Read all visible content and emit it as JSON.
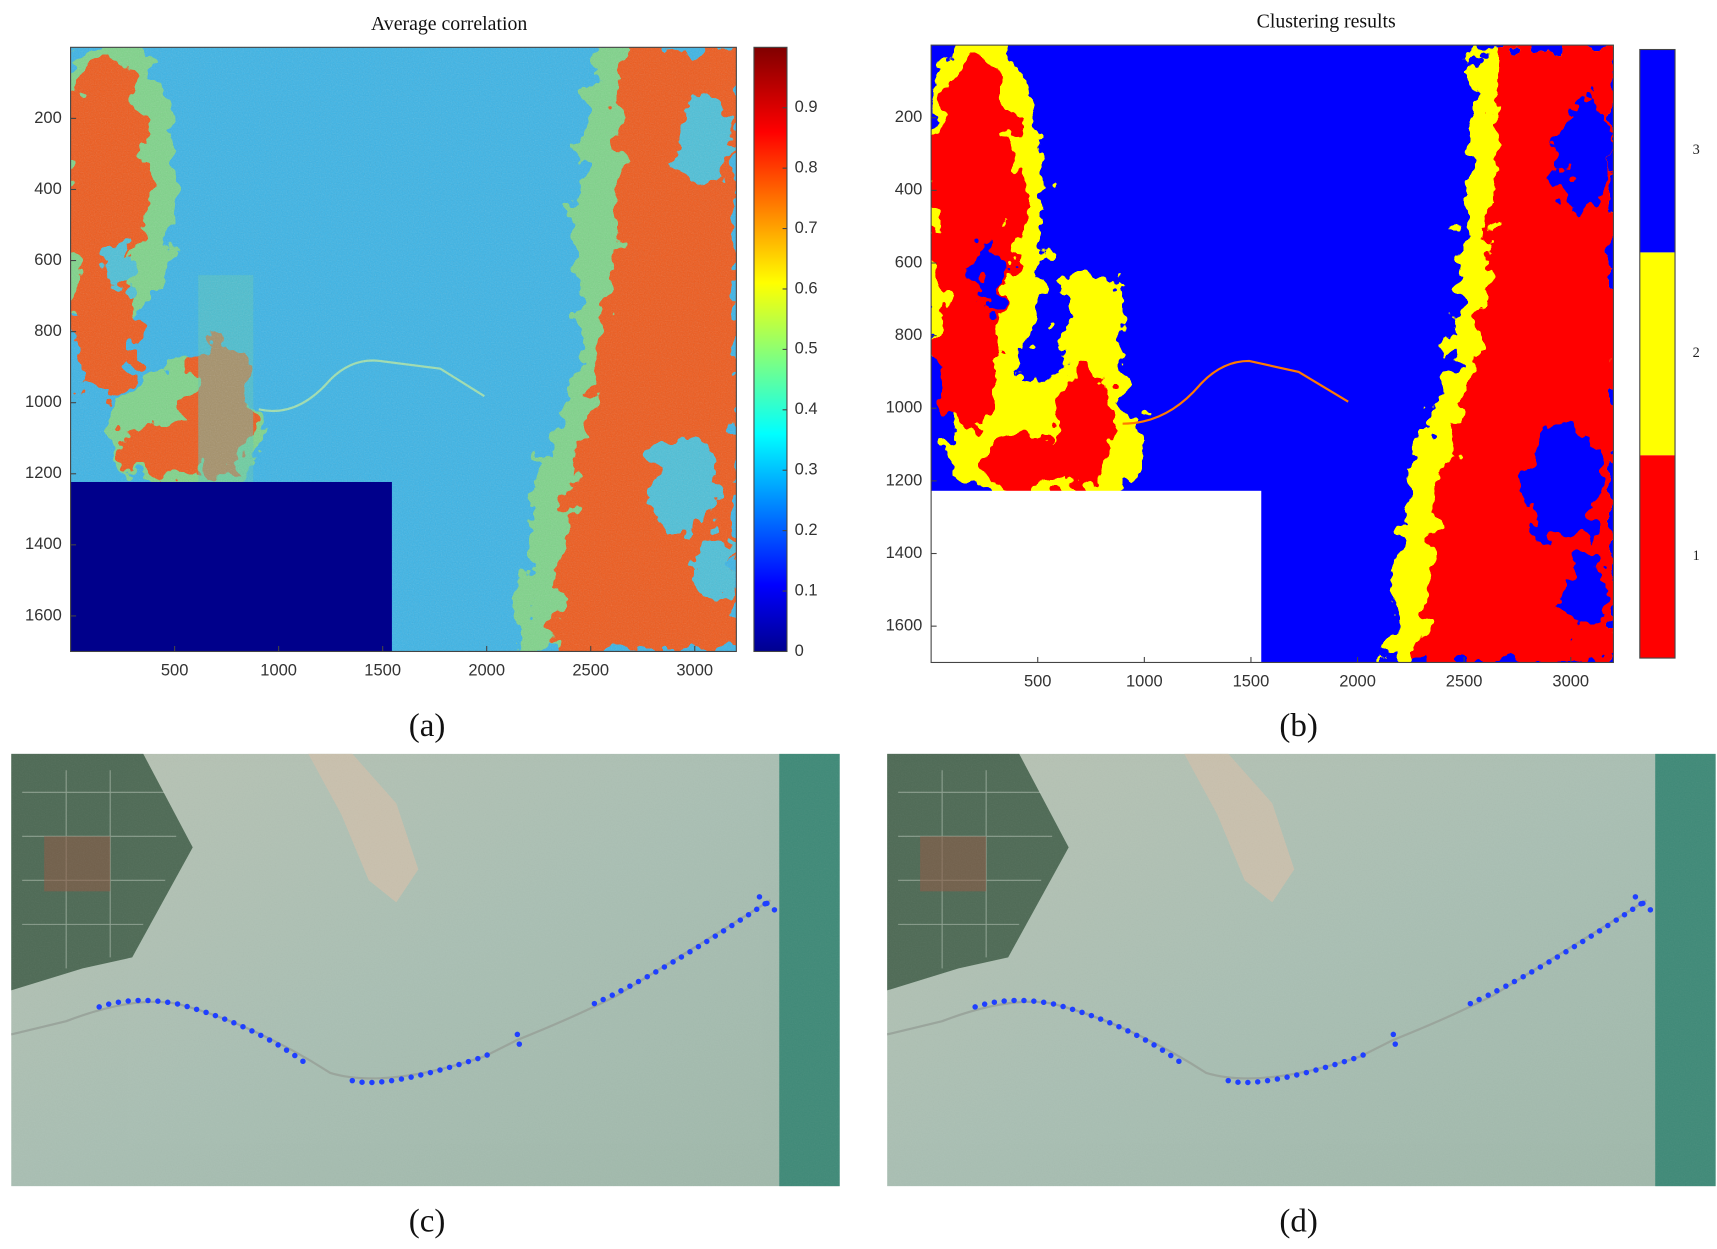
{
  "chart_data": [
    {
      "type": "heatmap",
      "title": "Average correlation",
      "label": "(a)",
      "xlim": [
        0,
        3200
      ],
      "xticks": [
        500,
        1000,
        1500,
        2000,
        2500,
        3000
      ],
      "ylim": [
        0,
        1700
      ],
      "yticks": [
        200,
        400,
        600,
        800,
        1000,
        1200,
        1400,
        1600
      ],
      "clim": [
        0,
        1
      ],
      "cticks": [
        0,
        0.1,
        0.2,
        0.3,
        0.4,
        0.5,
        0.6,
        0.7,
        0.8,
        0.9
      ],
      "colormap": "jet"
    },
    {
      "type": "heatmap",
      "title": "Clustering results",
      "label": "(b)",
      "xlim": [
        0,
        3200
      ],
      "xticks": [
        500,
        1000,
        1500,
        2000,
        2500,
        3000
      ],
      "ylim": [
        0,
        1700
      ],
      "yticks": [
        200,
        400,
        600,
        800,
        1000,
        1200,
        1400,
        1600
      ],
      "classes": [
        {
          "name": "1",
          "color": "#ff0000"
        },
        {
          "name": "2",
          "color": "#ffff00"
        },
        {
          "name": "3",
          "color": "#0000ff"
        }
      ]
    },
    {
      "type": "image",
      "label": "(c)"
    },
    {
      "type": "image",
      "label": "(d)"
    }
  ]
}
